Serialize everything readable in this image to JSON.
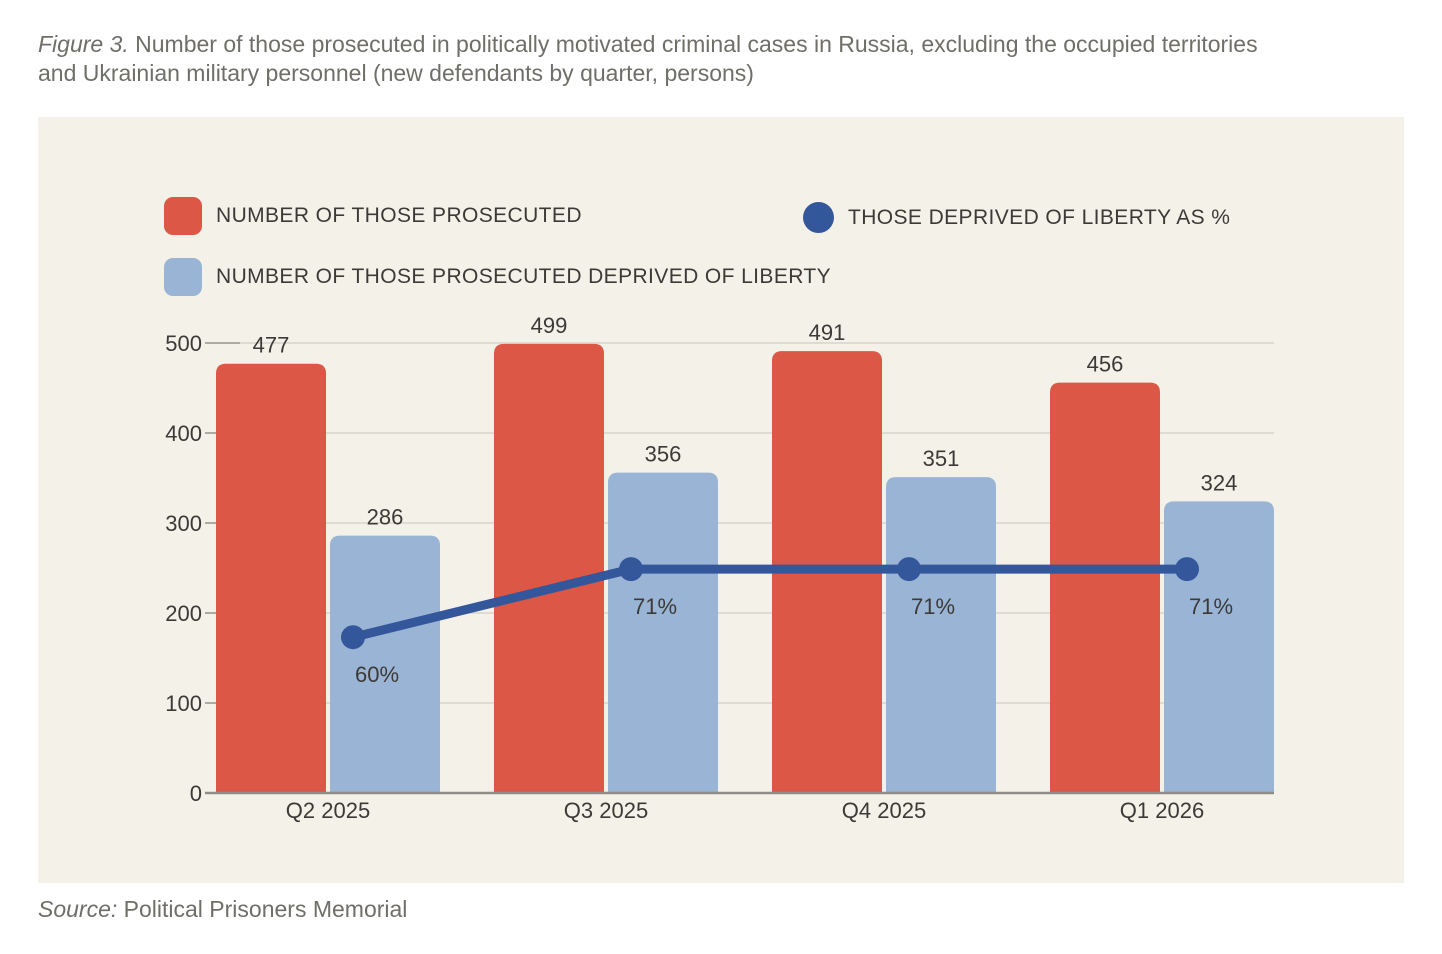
{
  "figure": {
    "label": "Figure 3.",
    "title_line1": "Number of those prosecuted in politically motivated criminal cases in Russia, excluding the occupied territories",
    "title_line2": "and Ukrainian military personnel (new defendants by quarter, persons)",
    "source_label": "Source:",
    "source_text": "Political Prisoners Memorial"
  },
  "legend": {
    "items": [
      {
        "icon": "red-rounded-square",
        "label": "NUMBER OF THOSE PROSECUTED"
      },
      {
        "icon": "dark-blue-circle",
        "label": "THOSE DEPRIVED OF LIBERTY AS %"
      },
      {
        "icon": "light-blue-rounded-square",
        "label": "NUMBER OF THOSE PROSECUTED DEPRIVED OF LIBERTY"
      }
    ]
  },
  "colors": {
    "bar_prosecuted": "#DC5746",
    "bar_deprived_of_liberty": "#9AB4D6",
    "percent_line": "#34579B",
    "panel_background": "#F3F1E8",
    "grid_line": "#D7D5CB",
    "axis_line": "#8F8D87",
    "tick_mark": "#ACAAA1",
    "chart_text": "#3B3A37",
    "muted_text": "#6F6E69"
  },
  "chart_data": {
    "type": "bar",
    "subtype": "grouped-bars-with-line-overlay",
    "title": "Number of those prosecuted in politically motivated criminal cases in Russia, excluding the occupied territories and Ukrainian military personnel (new defendants by quarter, persons)",
    "categories": [
      "Q2 2025",
      "Q3 2025",
      "Q4 2025",
      "Q1 2026"
    ],
    "series": [
      {
        "name": "NUMBER OF THOSE PROSECUTED",
        "type": "bar",
        "color": "#DC5746",
        "values": [
          477,
          499,
          491,
          456
        ]
      },
      {
        "name": "NUMBER OF THOSE PROSECUTED DEPRIVED OF LIBERTY",
        "type": "bar",
        "color": "#9AB4D6",
        "values": [
          286,
          356,
          351,
          324
        ]
      },
      {
        "name": "THOSE DEPRIVED OF LIBERTY AS %",
        "type": "line",
        "color": "#34579B",
        "values": [
          60,
          71,
          71,
          71
        ],
        "labels": [
          "60%",
          "71%",
          "71%",
          "71%"
        ]
      }
    ],
    "xlabel": "",
    "ylabel": "",
    "yticks": [
      0,
      100,
      200,
      300,
      400,
      500
    ],
    "ylim": [
      0,
      500
    ],
    "grid": true,
    "legend_position": "top-left",
    "source": "Political Prisoners Memorial"
  }
}
